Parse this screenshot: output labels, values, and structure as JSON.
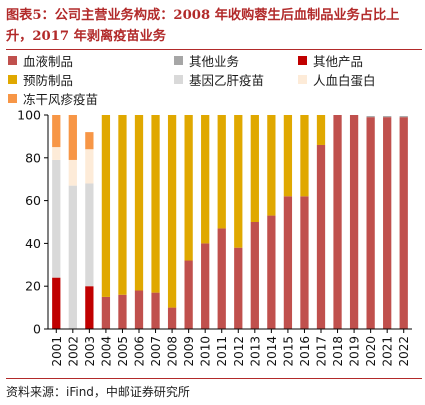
{
  "title": "图表5：公司主营业务构成：2008 年收购蓉生后血制品业务占比上升，2017 年剥离疫苗业务",
  "source": "资料来源：iFind，中邮证券研究所",
  "chart_data": {
    "type": "bar",
    "stacked": true,
    "categories": [
      "2001",
      "2002",
      "2003",
      "2004",
      "2005",
      "2006",
      "2007",
      "2008",
      "2009",
      "2010",
      "2011",
      "2012",
      "2013",
      "2014",
      "2015",
      "2016",
      "2017",
      "2018",
      "2019",
      "2020",
      "2021",
      "2022"
    ],
    "ylim": [
      0,
      100
    ],
    "yticks": [
      0,
      20,
      40,
      60,
      80,
      100
    ],
    "xlabel": "",
    "ylabel": "",
    "legend_position": "top",
    "grid": false,
    "series": [
      {
        "name": "血液制品",
        "color": "#c0504d",
        "values": [
          0,
          0,
          0,
          15,
          16,
          18,
          17,
          10,
          32,
          40,
          47,
          38,
          50,
          53,
          62,
          62,
          86,
          100,
          100,
          99,
          99,
          99
        ]
      },
      {
        "name": "其他业务",
        "color": "#a6a6a6",
        "values": [
          0,
          0,
          0,
          0,
          0,
          0,
          0,
          0,
          0,
          0,
          0,
          0,
          0,
          0,
          0,
          0,
          0,
          0,
          0,
          0.5,
          0.5,
          0.5
        ]
      },
      {
        "name": "其他产品",
        "color": "#c00000",
        "values": [
          24,
          0,
          20,
          0,
          0,
          0,
          0,
          0,
          0,
          0,
          0,
          0,
          0,
          0,
          0,
          0,
          0,
          0,
          0,
          0,
          0,
          0
        ]
      },
      {
        "name": "预防制品",
        "color": "#e0a800",
        "values": [
          0,
          0,
          0,
          85,
          84,
          82,
          83,
          90,
          68,
          60,
          53,
          62,
          50,
          47,
          38,
          38,
          14,
          0,
          0,
          0,
          0,
          0
        ]
      },
      {
        "name": "基因乙肝疫苗",
        "color": "#d9d9d9",
        "values": [
          55,
          67,
          48,
          0,
          0,
          0,
          0,
          0,
          0,
          0,
          0,
          0,
          0,
          0,
          0,
          0,
          0,
          0,
          0,
          0,
          0,
          0
        ]
      },
      {
        "name": "人血白蛋白",
        "color": "#fdebd8",
        "values": [
          6,
          12,
          16,
          0,
          0,
          0,
          0,
          0,
          0,
          0,
          0,
          0,
          0,
          0,
          0,
          0,
          0,
          0,
          0,
          0,
          0,
          0
        ]
      },
      {
        "name": "冻干风疹疫苗",
        "color": "#f79646",
        "values": [
          15,
          21,
          8,
          0,
          0,
          0,
          0,
          0,
          0,
          0,
          0,
          0,
          0,
          0,
          0,
          0,
          0,
          0,
          0,
          0,
          0,
          0
        ]
      }
    ]
  }
}
